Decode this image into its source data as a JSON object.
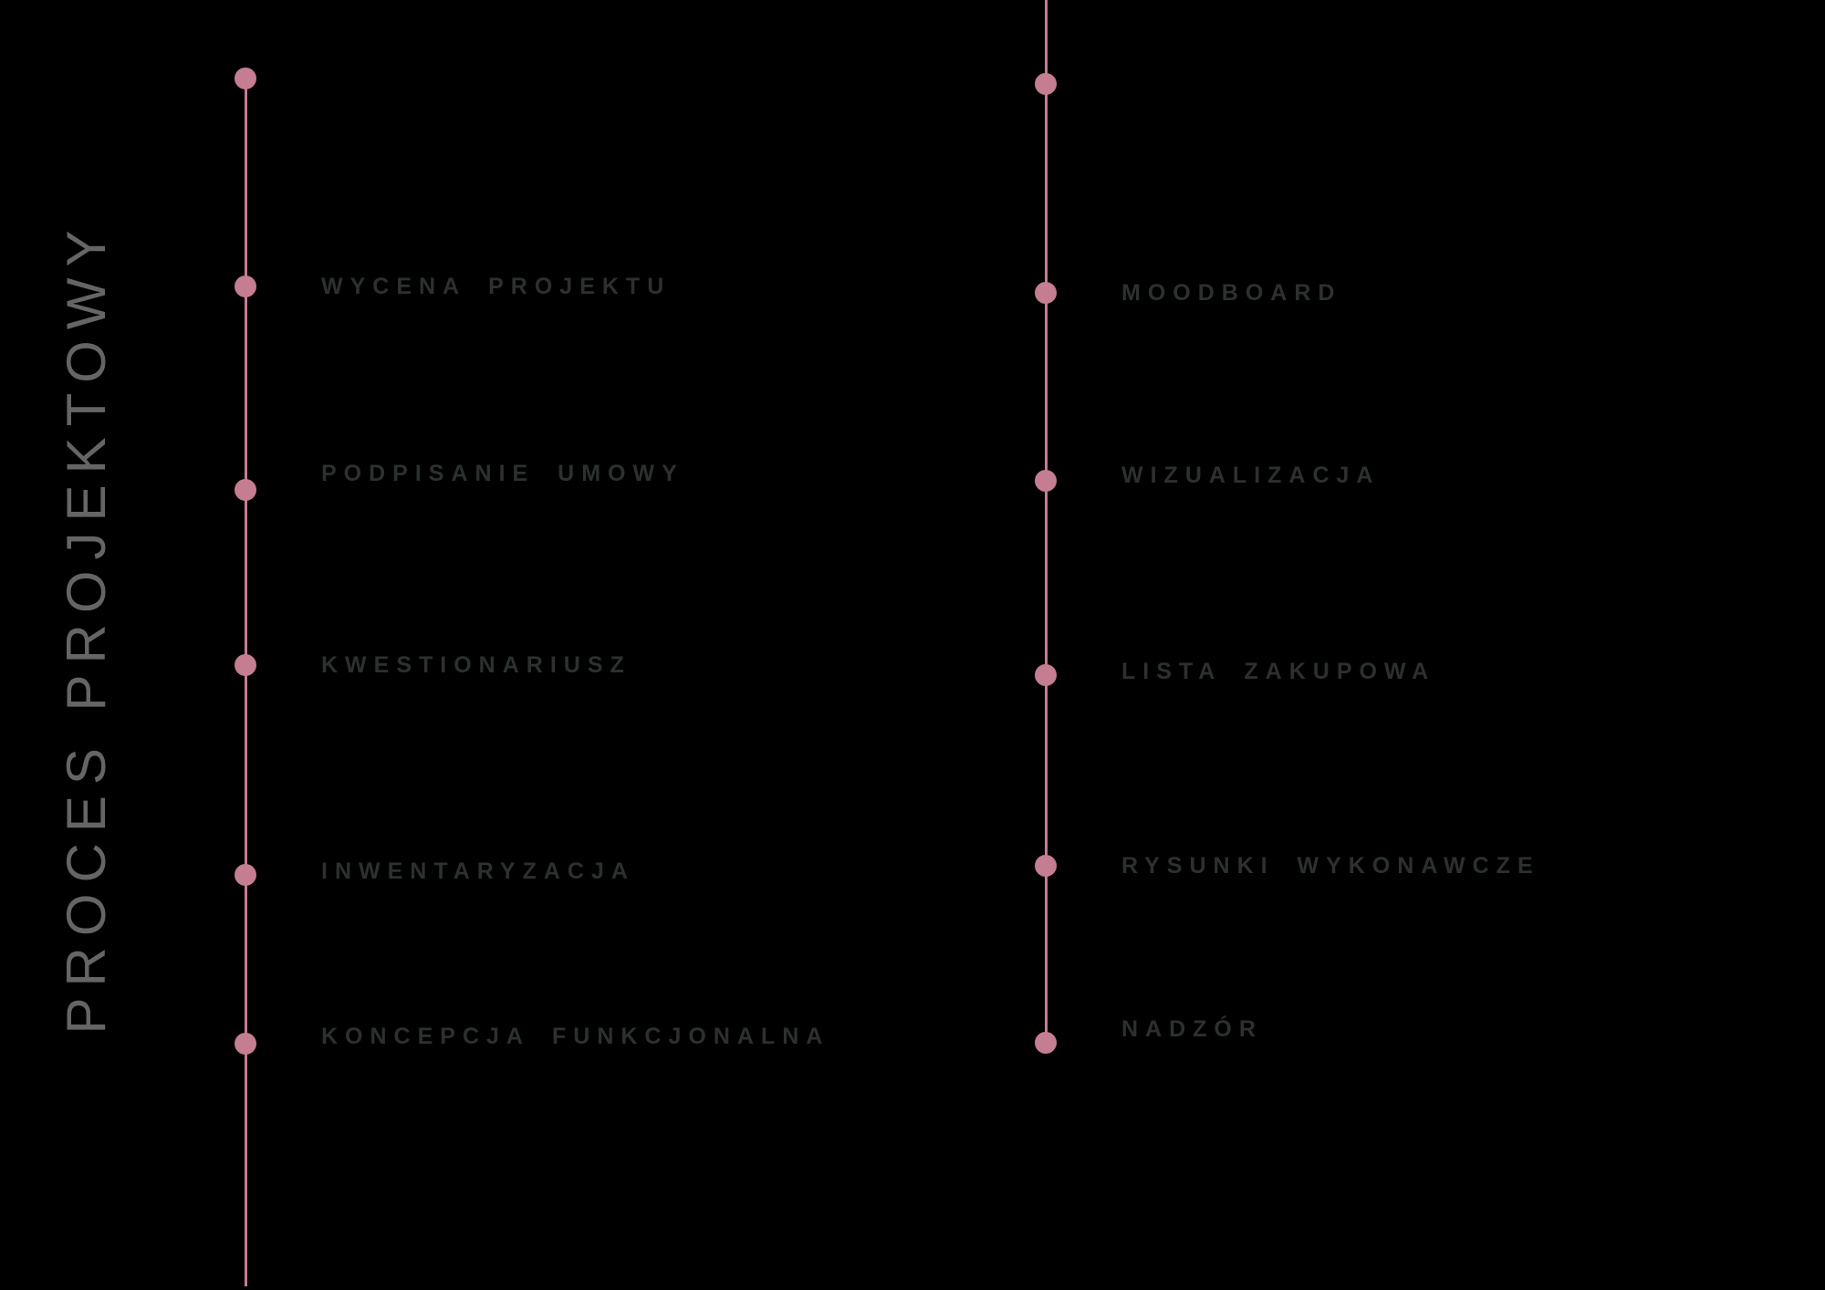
{
  "title": "PROCES PROJEKTOWY",
  "columns": [
    {
      "name": "left",
      "steps": [
        "WYCENA PROJEKTU",
        "PODPISANIE UMOWY",
        "KWESTIONARIUSZ",
        "INWENTARYZACJA",
        "KONCEPCJA FUNKCJONALNA"
      ]
    },
    {
      "name": "right",
      "steps": [
        "MOODBOARD",
        "WIZUALIZACJA",
        "LISTA ZAKUPOWA",
        "RYSUNKI WYKONAWCZE",
        "NADZÓR"
      ]
    }
  ],
  "colors": {
    "background": "#000000",
    "accent": "#c57d92",
    "label": "#2c302f",
    "title": "#656565"
  }
}
